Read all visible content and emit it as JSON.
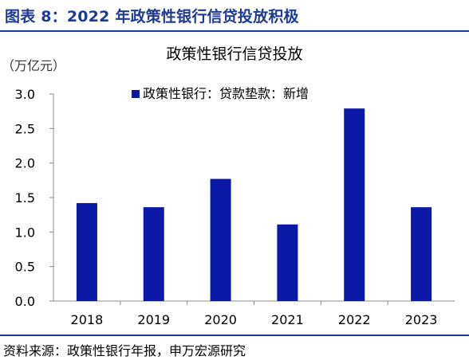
{
  "header": {
    "figure_title": "图表 8：2022 年政策性银行信贷投放积极"
  },
  "chart_data": {
    "type": "bar",
    "title": "政策性银行信贷投放",
    "unit_label": "（万亿元）",
    "categories": [
      "2018",
      "2019",
      "2020",
      "2021",
      "2022",
      "2023"
    ],
    "series": [
      {
        "name": "政策性银行：贷款垫款：新增",
        "values": [
          1.42,
          1.36,
          1.77,
          1.11,
          2.79,
          1.36
        ],
        "color": "#0a1aa6"
      }
    ],
    "ylim": [
      0,
      3.0
    ],
    "yticks": [
      "0.0",
      "0.5",
      "1.0",
      "1.5",
      "2.0",
      "2.5",
      "3.0"
    ],
    "grid": false,
    "legend_position": "top-center"
  },
  "footer": {
    "source": "资料来源：政策性银行年报，申万宏源研究"
  },
  "colors": {
    "accent": "#1f3a93",
    "bar": "#0a1aa6",
    "axis": "#8c8c8c"
  }
}
